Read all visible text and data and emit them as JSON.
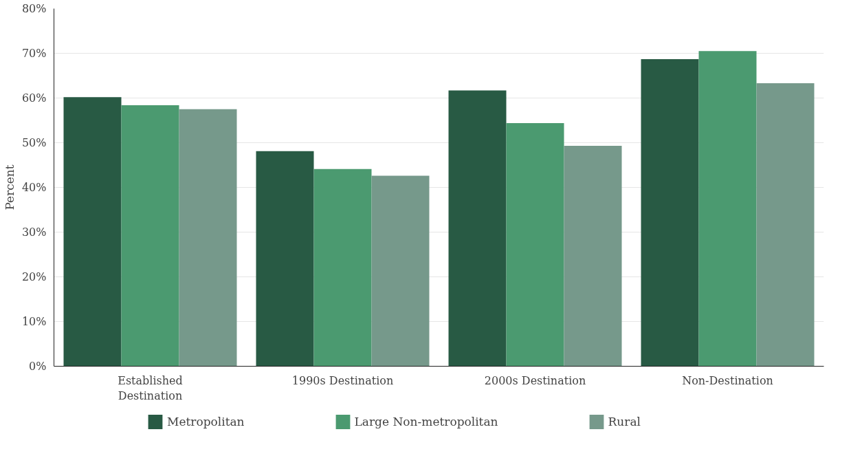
{
  "chart_data": {
    "type": "bar",
    "ylabel": "Percent",
    "categories": [
      "Established\nDestination",
      "1990s Destination",
      "2000s Destination",
      "Non-Destination"
    ],
    "series": [
      {
        "name": "Metropolitan",
        "color": "#285a44",
        "values": [
          60.2,
          48.1,
          61.7,
          68.7
        ]
      },
      {
        "name": "Large Non-metropolitan",
        "color": "#4b9a70",
        "values": [
          58.4,
          44.1,
          54.4,
          70.5
        ]
      },
      {
        "name": "Rural",
        "color": "#76998b",
        "values": [
          57.5,
          42.6,
          49.3,
          63.3
        ]
      }
    ],
    "ylim": [
      0,
      80
    ],
    "yticks": [
      {
        "value": 0,
        "label": "0%"
      },
      {
        "value": 10,
        "label": "10%"
      },
      {
        "value": 20,
        "label": "20%"
      },
      {
        "value": 30,
        "label": "30%"
      },
      {
        "value": 40,
        "label": "40%"
      },
      {
        "value": 50,
        "label": "50%"
      },
      {
        "value": 60,
        "label": "60%"
      },
      {
        "value": 70,
        "label": "70%"
      },
      {
        "value": 80,
        "label": "80%"
      }
    ],
    "grid": "y",
    "legend": "bottom"
  }
}
